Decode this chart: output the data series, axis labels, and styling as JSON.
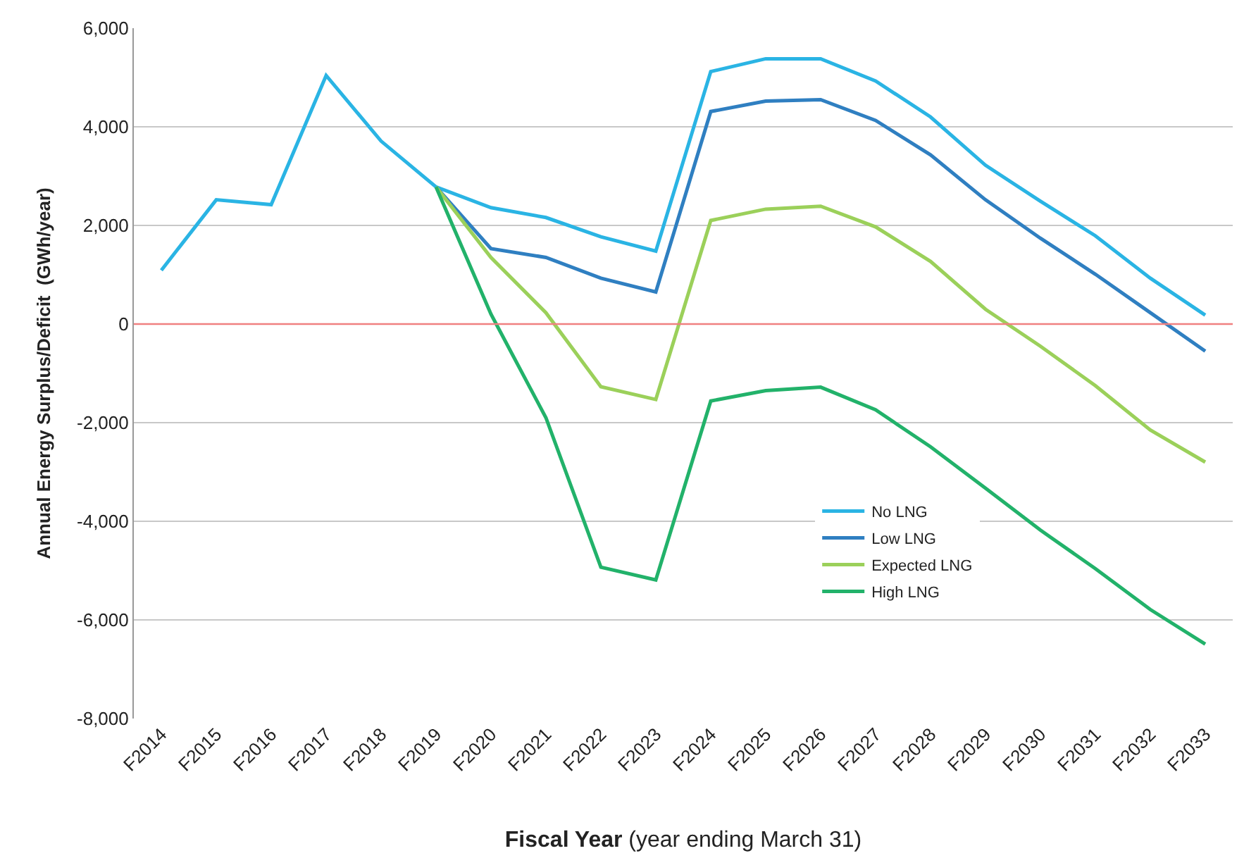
{
  "chart_data": {
    "type": "line",
    "xlabel": "Fiscal Year (year ending March 31)",
    "ylabel": "Annual Energy Surplus/Deficit  (GWh/year)",
    "categories": [
      "F2014",
      "F2015",
      "F2016",
      "F2017",
      "F2018",
      "F2019",
      "F2020",
      "F2021",
      "F2022",
      "F2023",
      "F2024",
      "F2025",
      "F2026",
      "F2027",
      "F2028",
      "F2029",
      "F2030",
      "F2031",
      "F2032",
      "F2033"
    ],
    "series": [
      {
        "name": "No LNG",
        "color": "#2ab4e4",
        "values": [
          1090,
          2520,
          2420,
          5040,
          3710,
          2780,
          2360,
          2160,
          1770,
          1480,
          5120,
          5380,
          5380,
          4930,
          4200,
          3220,
          2490,
          1790,
          930,
          180
        ]
      },
      {
        "name": "Low LNG",
        "color": "#2f7fc1",
        "values": [
          null,
          null,
          null,
          null,
          null,
          2780,
          1530,
          1350,
          930,
          650,
          4310,
          4520,
          4550,
          4130,
          3430,
          2520,
          1740,
          1010,
          230,
          -550
        ]
      },
      {
        "name": "Expected LNG",
        "color": "#9bd05a",
        "values": [
          null,
          null,
          null,
          null,
          null,
          2780,
          1350,
          230,
          -1270,
          -1530,
          2100,
          2330,
          2390,
          1970,
          1270,
          300,
          -450,
          -1250,
          -2150,
          -2800
        ]
      },
      {
        "name": "High LNG",
        "color": "#22b26a",
        "values": [
          null,
          null,
          null,
          null,
          null,
          2780,
          200,
          -1900,
          -4930,
          -5190,
          -1560,
          -1350,
          -1280,
          -1740,
          -2490,
          -3330,
          -4180,
          -4960,
          -5790,
          -6490
        ]
      }
    ],
    "ylim": [
      -8000,
      6000
    ],
    "yticks": [
      {
        "value": -8000,
        "label": "-8,000"
      },
      {
        "value": -6000,
        "label": "-6,000"
      },
      {
        "value": -4000,
        "label": "-4,000"
      },
      {
        "value": -2000,
        "label": "-2,000"
      },
      0,
      {
        "value": 2000,
        "label": "2,000"
      },
      {
        "value": 4000,
        "label": "4,000"
      },
      {
        "value": 6000,
        "label": "6,000"
      }
    ],
    "ref_lines": [
      {
        "axis": "y",
        "value": 0,
        "color": "#f08080"
      }
    ],
    "grid": "y",
    "legend": "bottom right",
    "marker": "none",
    "line_style": "solid"
  }
}
